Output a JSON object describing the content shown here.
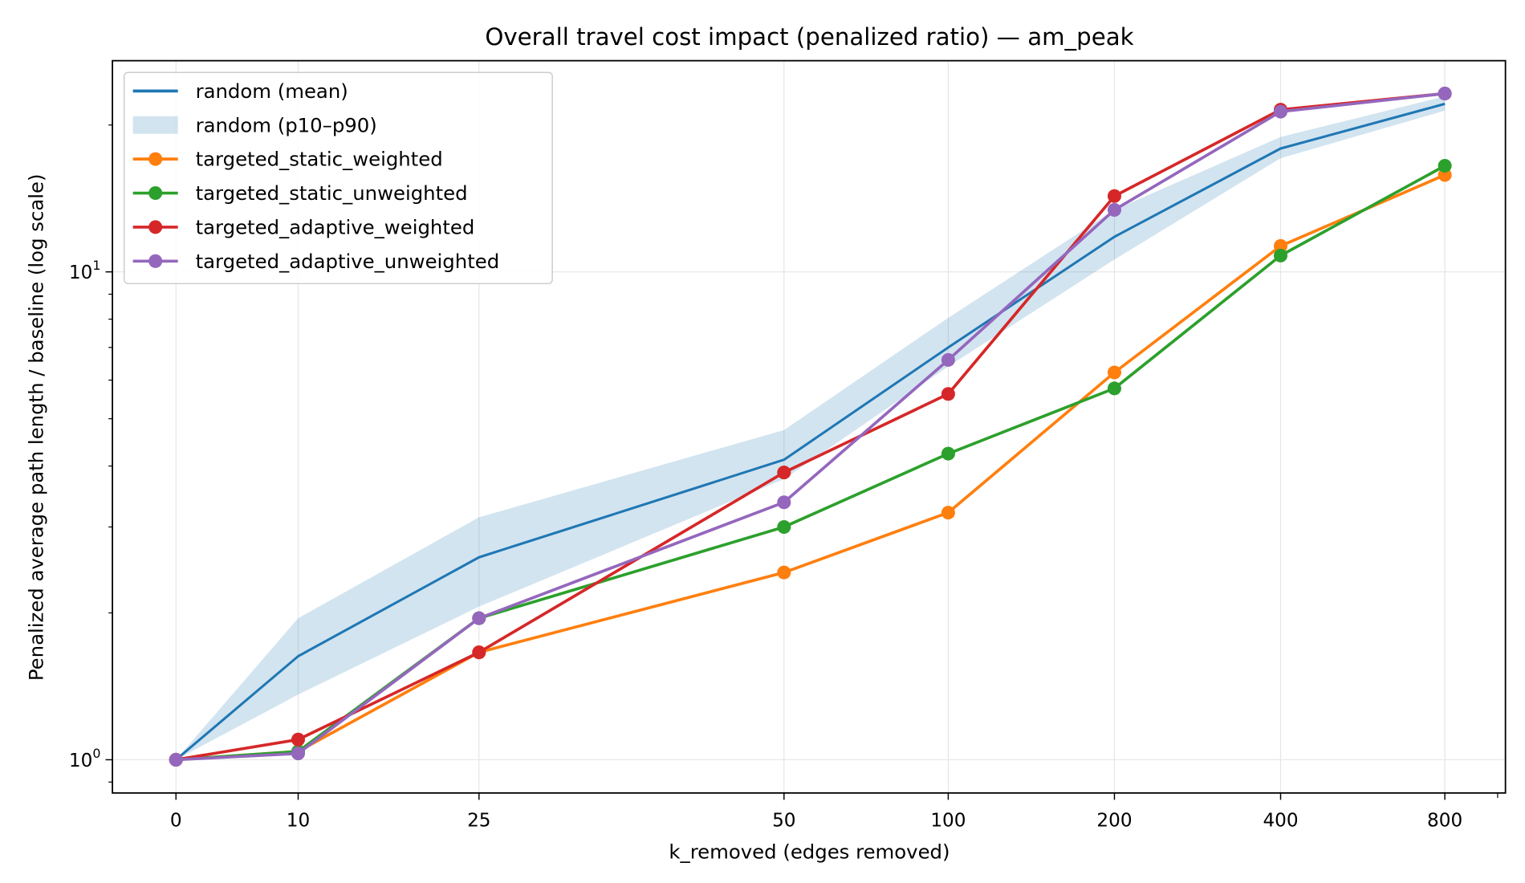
{
  "chart_data": {
    "type": "line",
    "title": "Overall travel cost impact (penalized ratio) — am_peak",
    "xlabel": "k_removed (edges removed)",
    "ylabel": "Penalized average path length / baseline (log scale)",
    "yscale": "log",
    "ylim": [
      0.86,
      28
    ],
    "ytick_labels": [
      {
        "value": 1,
        "base": "10",
        "exp": "0"
      },
      {
        "value": 10,
        "base": "10",
        "exp": "1"
      }
    ],
    "categories": [
      "0",
      "10",
      "25",
      "50",
      "100",
      "200",
      "400",
      "800"
    ],
    "grid": true,
    "legend_position": "top-left",
    "band": {
      "name": "random (p10–p90)",
      "color": "#1f77b4",
      "low": [
        1.0,
        1.36,
        2.06,
        3.76,
        6.4,
        10.6,
        17.1,
        21.4
      ],
      "high": [
        1.0,
        1.95,
        3.14,
        4.74,
        8.05,
        13.4,
        18.9,
        22.9
      ]
    },
    "series": [
      {
        "name": "random (mean)",
        "color": "#1f77b4",
        "markers": false,
        "values": [
          1.0,
          1.63,
          2.6,
          4.12,
          7.0,
          11.8,
          17.9,
          22.1
        ]
      },
      {
        "name": "targeted_static_weighted",
        "color": "#ff7f0e",
        "markers": true,
        "values": [
          1.0,
          1.04,
          1.66,
          2.42,
          3.21,
          6.22,
          11.3,
          15.8
        ]
      },
      {
        "name": "targeted_static_unweighted",
        "color": "#2ca02c",
        "markers": true,
        "values": [
          1.0,
          1.04,
          1.95,
          3.0,
          4.24,
          5.77,
          10.8,
          16.5
        ]
      },
      {
        "name": "targeted_adaptive_weighted",
        "color": "#d62728",
        "markers": true,
        "values": [
          1.0,
          1.1,
          1.66,
          3.88,
          5.62,
          14.3,
          21.5,
          23.2
        ]
      },
      {
        "name": "targeted_adaptive_unweighted",
        "color": "#9467bd",
        "markers": true,
        "values": [
          1.0,
          1.03,
          1.95,
          3.37,
          6.6,
          13.4,
          21.3,
          23.2
        ]
      }
    ]
  }
}
